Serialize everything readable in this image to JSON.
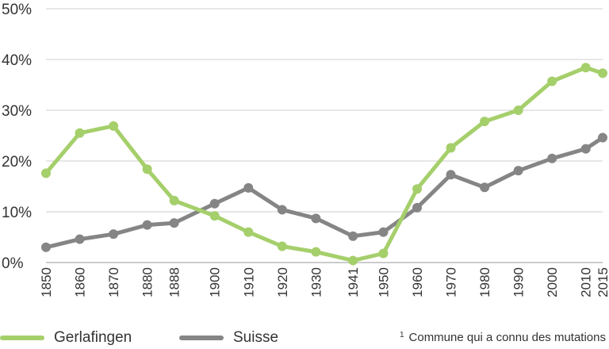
{
  "chart_data": {
    "type": "line",
    "x": [
      "1850",
      "1860",
      "1870",
      "1880",
      "1888",
      "1900",
      "1910",
      "1920",
      "1930",
      "1941",
      "1950",
      "1960",
      "1970",
      "1980",
      "1990",
      "2000",
      "2010",
      "2015"
    ],
    "y_ticks": [
      "0%",
      "10%",
      "20%",
      "30%",
      "40%",
      "50%"
    ],
    "ylim": [
      0,
      50
    ],
    "grid": true,
    "legend_position": "bottom",
    "series": [
      {
        "name": "Gerlafingen",
        "color": "#a5cf6b",
        "values": [
          17.6,
          25.5,
          26.9,
          18.4,
          12.2,
          9.2,
          6.0,
          3.2,
          2.1,
          0.4,
          1.8,
          14.5,
          22.6,
          27.8,
          30.0,
          35.7,
          38.4,
          37.3
        ]
      },
      {
        "name": "Suisse",
        "color": "#858585",
        "values": [
          3.0,
          4.6,
          5.6,
          7.4,
          7.8,
          11.6,
          14.7,
          10.4,
          8.7,
          5.2,
          6.0,
          10.8,
          17.3,
          14.8,
          18.1,
          20.5,
          22.4,
          24.6
        ]
      }
    ]
  },
  "footnote": {
    "marker": "1",
    "text": "Commune qui a connu des mutations"
  }
}
